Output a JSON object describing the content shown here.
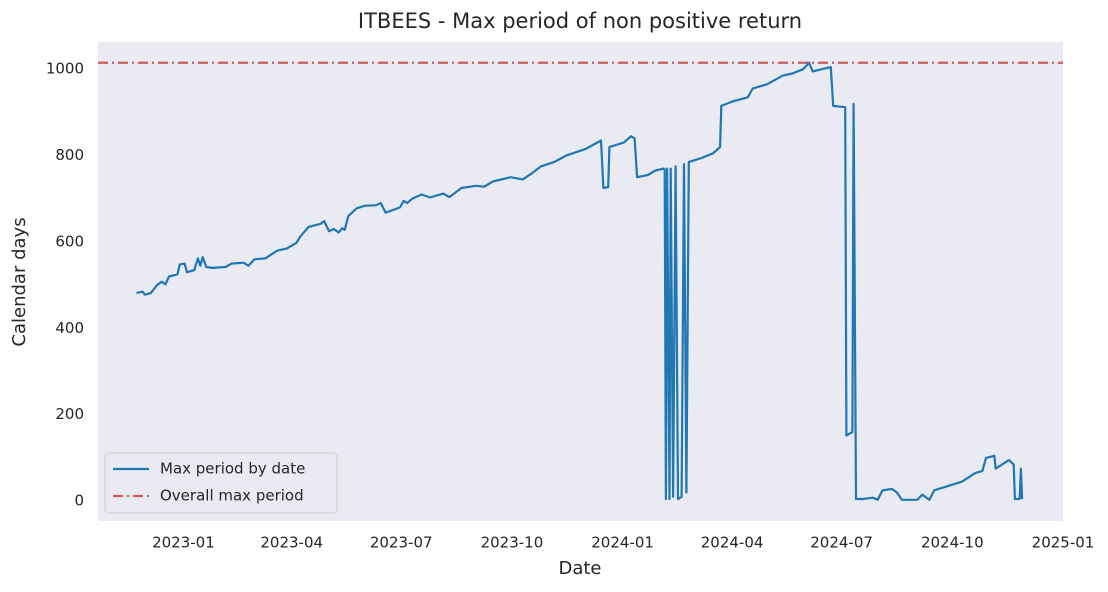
{
  "chart_data": {
    "type": "line",
    "title": "ITBEES - Max period of non positive return",
    "x_label": "Date",
    "y_label": "Calendar days",
    "xlim": [
      "2022-10-22",
      "2025-01-01"
    ],
    "xticks": [
      "2023-01",
      "2023-04",
      "2023-07",
      "2023-10",
      "2024-01",
      "2024-04",
      "2024-07",
      "2024-10",
      "2025-01"
    ],
    "ylim": [
      -46,
      1063
    ],
    "yticks": [
      0,
      200,
      400,
      600,
      800,
      1000
    ],
    "grid": false,
    "background": "#eaeaf2",
    "legend": "lower left",
    "x": [
      "2022-11-23",
      "2022-11-28",
      "2022-11-30",
      "2022-12-05",
      "2022-12-10",
      "2022-12-14",
      "2022-12-17",
      "2022-12-20",
      "2022-12-27",
      "2022-12-29",
      "2023-01-02",
      "2023-01-04",
      "2023-01-10",
      "2023-01-13",
      "2023-01-15",
      "2023-01-17",
      "2023-01-20",
      "2023-01-25",
      "2023-02-05",
      "2023-02-10",
      "2023-02-20",
      "2023-02-24",
      "2023-03-01",
      "2023-03-10",
      "2023-03-20",
      "2023-03-28",
      "2023-04-05",
      "2023-04-08",
      "2023-04-15",
      "2023-04-25",
      "2023-04-28",
      "2023-05-02",
      "2023-05-06",
      "2023-05-10",
      "2023-05-13",
      "2023-05-15",
      "2023-05-18",
      "2023-05-25",
      "2023-06-01",
      "2023-06-10",
      "2023-06-14",
      "2023-06-18",
      "2023-06-25",
      "2023-06-30",
      "2023-07-03",
      "2023-07-06",
      "2023-07-10",
      "2023-07-18",
      "2023-07-25",
      "2023-08-05",
      "2023-08-10",
      "2023-08-20",
      "2023-09-01",
      "2023-09-08",
      "2023-09-15",
      "2023-09-30",
      "2023-10-10",
      "2023-10-18",
      "2023-10-25",
      "2023-11-05",
      "2023-11-15",
      "2023-12-01",
      "2023-12-14",
      "2023-12-16",
      "2023-12-20",
      "2023-12-21",
      "2024-01-02",
      "2024-01-08",
      "2024-01-11",
      "2024-01-13",
      "2024-01-22",
      "2024-01-28",
      "2024-02-04",
      "2024-02-05",
      "2024-02-06",
      "2024-02-07",
      "2024-02-09",
      "2024-02-10",
      "2024-02-12",
      "2024-02-14",
      "2024-02-16",
      "2024-02-19",
      "2024-02-21",
      "2024-02-23",
      "2024-02-25",
      "2024-03-07",
      "2024-03-16",
      "2024-03-22",
      "2024-03-23",
      "2024-04-01",
      "2024-04-14",
      "2024-04-18",
      "2024-04-30",
      "2024-05-13",
      "2024-05-21",
      "2024-05-30",
      "2024-06-04",
      "2024-06-07",
      "2024-06-22",
      "2024-06-24",
      "2024-07-04",
      "2024-07-05",
      "2024-07-10",
      "2024-07-11",
      "2024-07-13",
      "2024-07-19",
      "2024-07-27",
      "2024-07-31",
      "2024-08-04",
      "2024-08-12",
      "2024-08-16",
      "2024-08-20",
      "2024-09-02",
      "2024-09-06",
      "2024-09-12",
      "2024-09-16",
      "2024-10-09",
      "2024-10-20",
      "2024-10-26",
      "2024-10-29",
      "2024-11-05",
      "2024-11-06",
      "2024-11-17",
      "2024-11-21",
      "2024-11-22",
      "2024-11-26",
      "2024-11-27",
      "2024-11-28"
    ],
    "series": [
      {
        "name": "Max period by date",
        "color": "#1f77b4",
        "values": [
          482,
          485,
          478,
          482,
          500,
          508,
          502,
          520,
          525,
          548,
          550,
          530,
          535,
          562,
          545,
          565,
          542,
          540,
          542,
          550,
          552,
          545,
          560,
          562,
          580,
          585,
          598,
          612,
          635,
          642,
          648,
          625,
          630,
          622,
          632,
          628,
          660,
          678,
          684,
          685,
          690,
          668,
          675,
          680,
          695,
          690,
          700,
          710,
          703,
          712,
          704,
          725,
          730,
          728,
          740,
          750,
          745,
          760,
          775,
          785,
          800,
          815,
          835,
          725,
          727,
          820,
          830,
          845,
          840,
          750,
          755,
          765,
          770,
          768,
          5,
          770,
          5,
          770,
          10,
          775,
          5,
          10,
          780,
          20,
          785,
          795,
          805,
          820,
          915,
          925,
          935,
          955,
          965,
          985,
          990,
          1000,
          1015,
          995,
          1005,
          915,
          912,
          152,
          160,
          920,
          5,
          5,
          8,
          3,
          25,
          28,
          20,
          3,
          3,
          15,
          3,
          25,
          45,
          65,
          70,
          100,
          105,
          75,
          95,
          85,
          5,
          5,
          75,
          5
        ]
      }
    ],
    "hlines": [
      {
        "name": "Overall max period",
        "value": 1015,
        "color": "#cd5c5c",
        "style": "dashdot"
      }
    ]
  }
}
